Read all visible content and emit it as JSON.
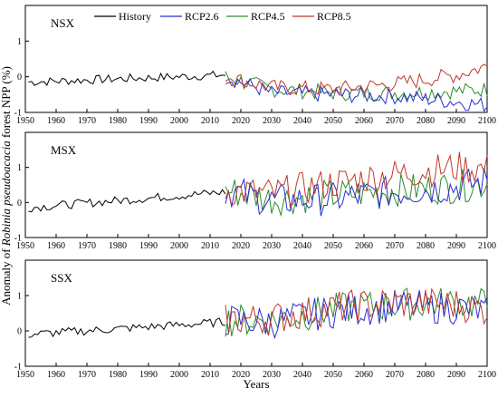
{
  "chart_data": {
    "type": "line",
    "xlabel": "Years",
    "ylabel_parts": [
      "Anomaly of ",
      "Robinia pseudoacacia",
      " forest NPP (%)"
    ],
    "x_ticks": [
      1950,
      1960,
      1970,
      1980,
      1990,
      2000,
      2010,
      2020,
      2030,
      2040,
      2050,
      2060,
      2070,
      2080,
      2090,
      2100
    ],
    "legend": [
      {
        "name": "History",
        "color": "#000000"
      },
      {
        "name": "RCP2.6",
        "color": "#2b2bd6"
      },
      {
        "name": "RCP4.5",
        "color": "#2e8b2e"
      },
      {
        "name": "RCP8.5",
        "color": "#c0392b"
      }
    ],
    "panels": [
      {
        "label": "NSX",
        "ylim": [
          -1,
          2
        ],
        "y_ticks": [
          -1,
          0,
          1
        ],
        "history_trend": {
          "x": [
            1951,
            2015
          ],
          "y": [
            -0.15,
            0.05
          ]
        },
        "scenarios": {
          "RCP2.6": {
            "x": [
              2015,
              2030,
              2050,
              2070,
              2090,
              2100
            ],
            "y": [
              0.0,
              -0.45,
              -0.5,
              -0.55,
              -0.7,
              -0.8
            ]
          },
          "RCP4.5": {
            "x": [
              2015,
              2030,
              2050,
              2070,
              2090,
              2100
            ],
            "y": [
              0.0,
              -0.35,
              -0.45,
              -0.45,
              -0.4,
              -0.35
            ]
          },
          "RCP8.5": {
            "x": [
              2015,
              2030,
              2050,
              2070,
              2090,
              2100
            ],
            "y": [
              0.0,
              -0.3,
              -0.35,
              -0.2,
              0.05,
              0.3
            ]
          }
        }
      },
      {
        "label": "MSX",
        "ylim": [
          -1,
          2
        ],
        "y_ticks": [
          -1,
          0,
          1
        ],
        "history_trend": {
          "x": [
            1951,
            2015
          ],
          "y": [
            -0.15,
            0.3
          ]
        },
        "scenarios": {
          "RCP2.6": {
            "x": [
              2015,
              2030,
              2050,
              2070,
              2090,
              2100
            ],
            "y": [
              0.35,
              0.05,
              0.1,
              0.3,
              0.45,
              0.6
            ]
          },
          "RCP4.5": {
            "x": [
              2015,
              2030,
              2050,
              2070,
              2090,
              2100
            ],
            "y": [
              0.35,
              0.1,
              0.2,
              0.35,
              0.45,
              0.55
            ]
          },
          "RCP8.5": {
            "x": [
              2015,
              2030,
              2050,
              2070,
              2090,
              2100
            ],
            "y": [
              0.35,
              0.25,
              0.55,
              0.8,
              1.0,
              0.95
            ]
          }
        }
      },
      {
        "label": "SSX",
        "ylim": [
          -1,
          2
        ],
        "y_ticks": [
          -1,
          0,
          1
        ],
        "history_trend": {
          "x": [
            1951,
            2015
          ],
          "y": [
            -0.1,
            0.25
          ]
        },
        "scenarios": {
          "RCP2.6": {
            "x": [
              2015,
              2030,
              2050,
              2070,
              2090,
              2100
            ],
            "y": [
              0.3,
              0.25,
              0.55,
              0.7,
              0.65,
              0.55
            ]
          },
          "RCP4.5": {
            "x": [
              2015,
              2030,
              2050,
              2070,
              2090,
              2100
            ],
            "y": [
              0.3,
              0.3,
              0.6,
              0.75,
              0.8,
              0.75
            ]
          },
          "RCP8.5": {
            "x": [
              2015,
              2030,
              2050,
              2070,
              2090,
              2100
            ],
            "y": [
              0.3,
              0.35,
              0.65,
              0.8,
              0.75,
              0.6
            ]
          }
        }
      }
    ]
  }
}
